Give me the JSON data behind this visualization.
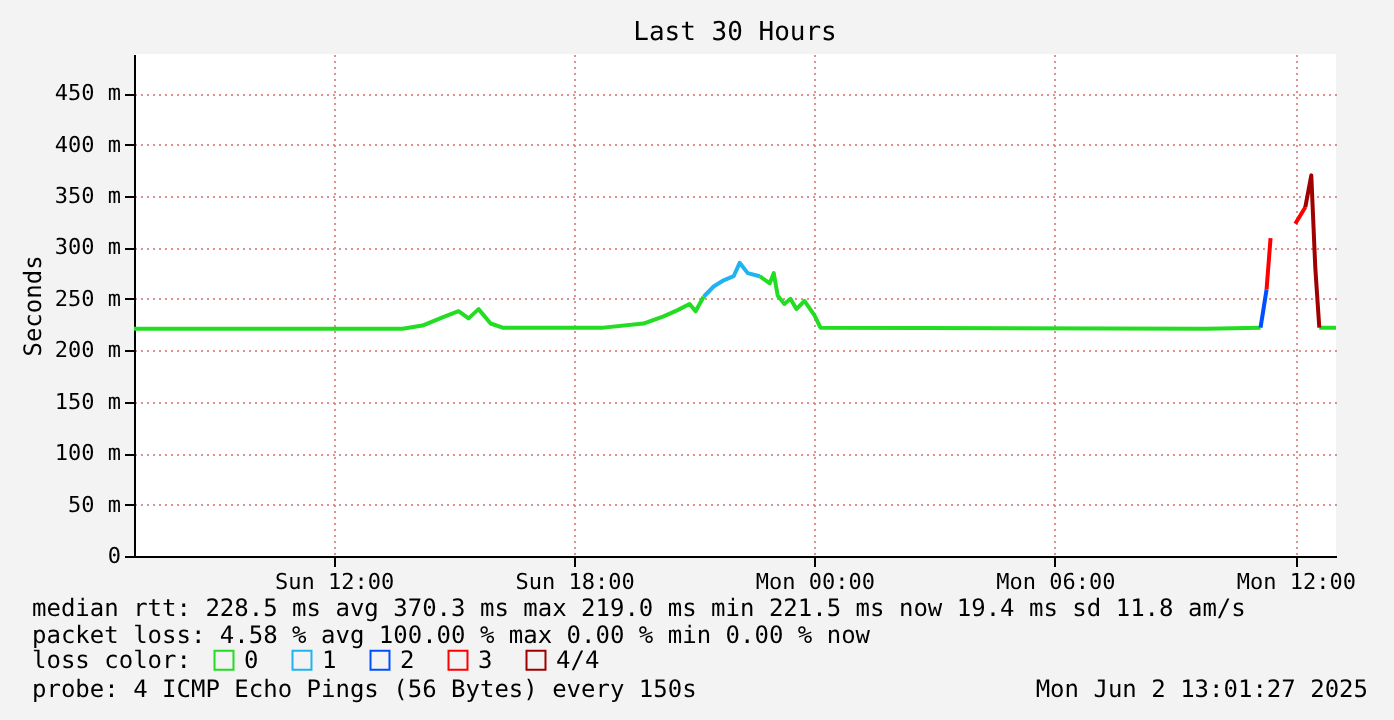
{
  "chart_data": {
    "type": "line",
    "title": "Last 30 Hours",
    "xlim": [
      "2025-06-01T07:01",
      "2025-06-02T13:01"
    ],
    "xticks": [
      {
        "value": "2025-06-01T12:00",
        "label": "Sun 12:00"
      },
      {
        "value": "2025-06-01T18:00",
        "label": "Sun 18:00"
      },
      {
        "value": "2025-06-02T00:00",
        "label": "Mon 00:00"
      },
      {
        "value": "2025-06-02T06:00",
        "label": "Mon 06:00"
      },
      {
        "value": "2025-06-02T12:00",
        "label": "Mon 12:00"
      }
    ],
    "ylim": [
      0,
      488
    ],
    "yticks": [
      0,
      {
        "value": 50,
        "label": "50 m"
      },
      {
        "value": 100,
        "label": "100 m"
      },
      {
        "value": 150,
        "label": "150 m"
      },
      {
        "value": 200,
        "label": "200 m"
      },
      {
        "value": 250,
        "label": "250 m"
      },
      {
        "value": 300,
        "label": "300 m"
      },
      {
        "value": 350,
        "label": "350 m"
      },
      {
        "value": 400,
        "label": "400 m"
      },
      {
        "value": 450,
        "label": "450 m"
      }
    ],
    "ylabel": "Seconds",
    "x": [
      "2025-06-01T07:01",
      "2025-06-01T12:00",
      "2025-06-01T13:43",
      "2025-06-01T14:13",
      "2025-06-01T14:43",
      "2025-06-01T15:07",
      "2025-06-01T15:22",
      "2025-06-01T15:37",
      "2025-06-01T15:55",
      "2025-06-01T16:13",
      "2025-06-01T18:44",
      "2025-06-01T19:44",
      "2025-06-01T20:14",
      "2025-06-01T20:35",
      "2025-06-01T20:53",
      "2025-06-01T21:02",
      "2025-06-01T21:14",
      "2025-06-01T21:29",
      "2025-06-01T21:44",
      "2025-06-01T21:59",
      "2025-06-01T22:08",
      "2025-06-01T22:20",
      "2025-06-01T22:38",
      "2025-06-01T22:53",
      "2025-06-01T22:59",
      "2025-06-01T23:05",
      "2025-06-01T23:15",
      "2025-06-01T23:24",
      "2025-06-01T23:33",
      "2025-06-01T23:45",
      "2025-06-02T00:00",
      "2025-06-02T00:09",
      "2025-06-02T09:47",
      "2025-06-02T11:08",
      "2025-06-02T11:17",
      "2025-06-02T11:23",
      "2025-06-02T11:36",
      "2025-06-02T12:00",
      "2025-06-02T12:15",
      "2025-06-02T12:24",
      "2025-06-02T12:30",
      "2025-06-02T12:36",
      "2025-06-02T13:01"
    ],
    "series": [
      {
        "name": "0",
        "color": "#22dd22",
        "values": [
          221,
          221,
          221,
          224,
          232,
          238,
          231,
          240,
          226,
          222,
          222,
          226,
          233,
          239,
          245,
          238,
          252,
          null,
          null,
          null,
          null,
          null,
          272,
          265,
          275,
          253,
          245,
          250,
          240,
          248,
          234,
          222,
          221,
          222,
          null,
          null,
          null,
          null,
          null,
          null,
          null,
          222,
          222
        ]
      },
      {
        "name": "1",
        "color": "#1fb4f0",
        "values": [
          null,
          null,
          null,
          null,
          null,
          null,
          null,
          null,
          null,
          null,
          null,
          null,
          null,
          null,
          null,
          null,
          252,
          262,
          268,
          272,
          285,
          275,
          272,
          null,
          null,
          null,
          null,
          null,
          null,
          null,
          null,
          null,
          null,
          null,
          null,
          null,
          null,
          null,
          null,
          null,
          null,
          null,
          null
        ]
      },
      {
        "name": "2",
        "color": "#0050ff",
        "values": [
          null,
          null,
          null,
          null,
          null,
          null,
          null,
          null,
          null,
          null,
          null,
          null,
          null,
          null,
          null,
          null,
          null,
          null,
          null,
          null,
          null,
          null,
          null,
          null,
          null,
          null,
          null,
          null,
          null,
          null,
          null,
          null,
          null,
          222,
          259,
          null,
          null,
          null,
          null,
          null,
          null,
          null,
          null
        ]
      },
      {
        "name": "3",
        "color": "#ff0000",
        "values": [
          null,
          null,
          null,
          null,
          null,
          null,
          null,
          null,
          null,
          null,
          null,
          null,
          null,
          null,
          null,
          null,
          null,
          null,
          null,
          null,
          null,
          null,
          null,
          null,
          null,
          null,
          null,
          null,
          null,
          null,
          null,
          null,
          null,
          null,
          259,
          309,
          null,
          323,
          339,
          null,
          null,
          null,
          null
        ]
      },
      {
        "name": "4/4",
        "color": "#a00000",
        "values": [
          null,
          null,
          null,
          null,
          null,
          null,
          null,
          null,
          null,
          null,
          null,
          null,
          null,
          null,
          null,
          null,
          null,
          null,
          null,
          null,
          null,
          null,
          null,
          null,
          null,
          null,
          null,
          null,
          null,
          null,
          null,
          null,
          null,
          null,
          null,
          null,
          null,
          null,
          339,
          370,
          280,
          222,
          null
        ]
      }
    ],
    "legend": "bottom",
    "legend_title": "loss color:",
    "grid": true,
    "line_style": "solid",
    "marker": "none",
    "annotations": [
      "median rtt:  228.5 ms avg  370.3 ms max  219.0 ms min  221.5 ms now  19.4 ms sd  11.8   am/s",
      "packet loss: 4.58 % avg  100.00 % max  0.00 % min  0.00 % now",
      "probe:       4 ICMP Echo Pings (56 Bytes) every 150s",
      "Mon Jun  2 13:01:27 2025"
    ]
  }
}
